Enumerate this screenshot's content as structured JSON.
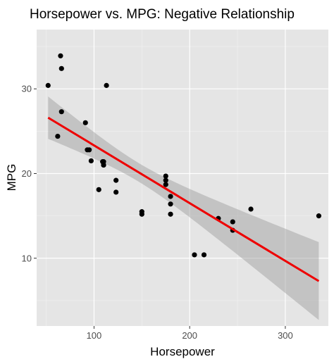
{
  "chart_data": {
    "type": "scatter",
    "title": "Horsepower vs. MPG: Negative Relationship",
    "xlabel": "Horsepower",
    "ylabel": "MPG",
    "xlim": [
      40,
      345
    ],
    "ylim": [
      2,
      37
    ],
    "xticks": [
      100,
      200,
      300
    ],
    "yticks": [
      10,
      20,
      30
    ],
    "grid": true,
    "legend": "none",
    "points": [
      {
        "x": 110,
        "y": 21.0
      },
      {
        "x": 110,
        "y": 21.0
      },
      {
        "x": 93,
        "y": 22.8
      },
      {
        "x": 110,
        "y": 21.4
      },
      {
        "x": 175,
        "y": 18.7
      },
      {
        "x": 105,
        "y": 18.1
      },
      {
        "x": 245,
        "y": 14.3
      },
      {
        "x": 62,
        "y": 24.4
      },
      {
        "x": 95,
        "y": 22.8
      },
      {
        "x": 123,
        "y": 19.2
      },
      {
        "x": 123,
        "y": 17.8
      },
      {
        "x": 180,
        "y": 16.4
      },
      {
        "x": 180,
        "y": 17.3
      },
      {
        "x": 180,
        "y": 15.2
      },
      {
        "x": 205,
        "y": 10.4
      },
      {
        "x": 215,
        "y": 10.4
      },
      {
        "x": 230,
        "y": 14.7
      },
      {
        "x": 66,
        "y": 32.4
      },
      {
        "x": 52,
        "y": 30.4
      },
      {
        "x": 65,
        "y": 33.9
      },
      {
        "x": 97,
        "y": 21.5
      },
      {
        "x": 150,
        "y": 15.5
      },
      {
        "x": 150,
        "y": 15.2
      },
      {
        "x": 245,
        "y": 13.3
      },
      {
        "x": 175,
        "y": 19.2
      },
      {
        "x": 66,
        "y": 27.3
      },
      {
        "x": 91,
        "y": 26.0
      },
      {
        "x": 113,
        "y": 30.4
      },
      {
        "x": 264,
        "y": 15.8
      },
      {
        "x": 175,
        "y": 19.7
      },
      {
        "x": 335,
        "y": 15.0
      },
      {
        "x": 109,
        "y": 21.4
      }
    ],
    "fit": {
      "method": "linear",
      "x_range": [
        52,
        335
      ],
      "y_at_range": [
        26.6,
        7.3
      ],
      "ci_lower_at_range": [
        24.0,
        3.3
      ],
      "ci_upper_at_range": [
        29.0,
        11.5
      ],
      "x_center": 146.7,
      "y_center": 20.1,
      "ci_halfwidth_at_center": 1.1
    },
    "colors": {
      "panel_background": "#e5e5e5",
      "grid_major": "#ffffff",
      "grid_minor": "#f2f2f2",
      "points": "#000000",
      "fit_line": "#ee0000",
      "ci_band": "#999999"
    }
  }
}
